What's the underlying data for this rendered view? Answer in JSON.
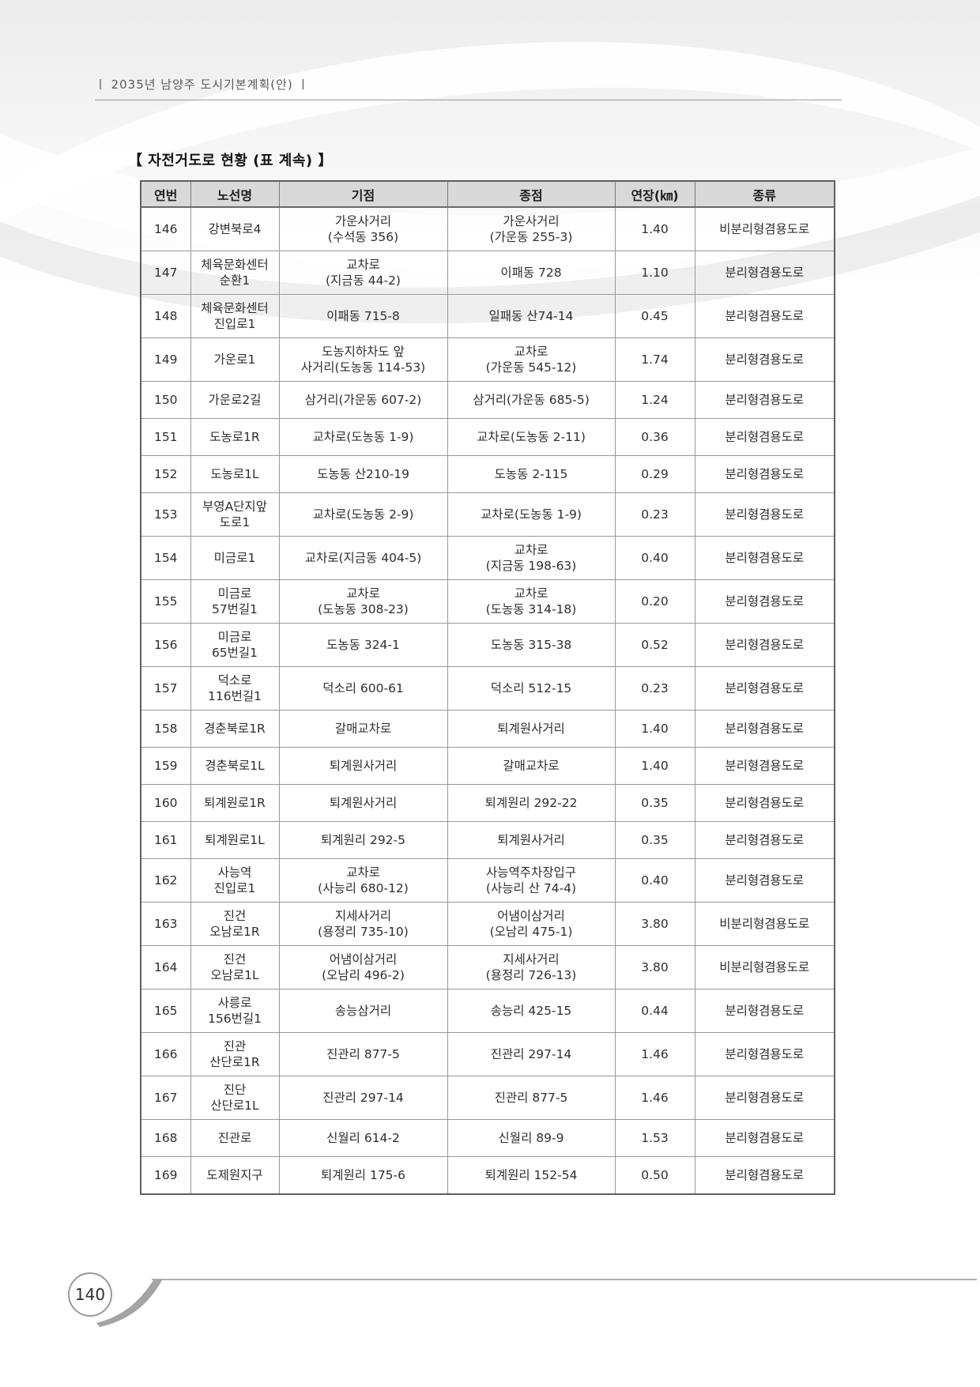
{
  "page": {
    "running_head": "ㅣ  2035년 남양주 도시기본계획(안)  ㅣ",
    "page_number": "140"
  },
  "table": {
    "title": "【 자전거도로 현황 (표 계속) 】",
    "column_keys": [
      "no",
      "name",
      "start",
      "end",
      "length",
      "type"
    ],
    "columns": [
      "연번",
      "노선명",
      "기점",
      "종점",
      "연장(㎞)",
      "종류"
    ],
    "rows": [
      {
        "no": "146",
        "name": "강변북로4",
        "start": "가운사거리\n(수석동 356)",
        "end": "가운사거리\n(가운동 255-3)",
        "length": "1.40",
        "type": "비분리형겸용도로"
      },
      {
        "no": "147",
        "name": "체육문화센터\n순환1",
        "start": "교차로\n(지금동 44-2)",
        "end": "이패동 728",
        "length": "1.10",
        "type": "분리형겸용도로"
      },
      {
        "no": "148",
        "name": "체육문화센터\n진입로1",
        "start": "이패동 715-8",
        "end": "일패동 산74-14",
        "length": "0.45",
        "type": "분리형겸용도로"
      },
      {
        "no": "149",
        "name": "가운로1",
        "start": "도농지하차도 앞\n사거리(도농동 114-53)",
        "end": "교차로\n(가운동 545-12)",
        "length": "1.74",
        "type": "분리형겸용도로"
      },
      {
        "no": "150",
        "name": "가운로2길",
        "start": "삼거리(가운동 607-2)",
        "end": "삼거리(가운동 685-5)",
        "length": "1.24",
        "type": "분리형겸용도로"
      },
      {
        "no": "151",
        "name": "도농로1R",
        "start": "교차로(도농동 1-9)",
        "end": "교차로(도농동 2-11)",
        "length": "0.36",
        "type": "분리형겸용도로"
      },
      {
        "no": "152",
        "name": "도농로1L",
        "start": "도농동 산210-19",
        "end": "도농동 2-115",
        "length": "0.29",
        "type": "분리형겸용도로"
      },
      {
        "no": "153",
        "name": "부영A단지앞\n도로1",
        "start": "교차로(도농동 2-9)",
        "end": "교차로(도농동 1-9)",
        "length": "0.23",
        "type": "분리형겸용도로"
      },
      {
        "no": "154",
        "name": "미금로1",
        "start": "교차로(지금동 404-5)",
        "end": "교차로\n(지금동 198-63)",
        "length": "0.40",
        "type": "분리형겸용도로"
      },
      {
        "no": "155",
        "name": "미금로\n57번길1",
        "start": "교차로\n(도농동 308-23)",
        "end": "교차로\n(도농동 314-18)",
        "length": "0.20",
        "type": "분리형겸용도로"
      },
      {
        "no": "156",
        "name": "미금로\n65번길1",
        "start": "도농동 324-1",
        "end": "도농동 315-38",
        "length": "0.52",
        "type": "분리형겸용도로"
      },
      {
        "no": "157",
        "name": "덕소로\n116번길1",
        "start": "덕소리 600-61",
        "end": "덕소리 512-15",
        "length": "0.23",
        "type": "분리형겸용도로"
      },
      {
        "no": "158",
        "name": "경춘북로1R",
        "start": "갈매교차로",
        "end": "퇴계원사거리",
        "length": "1.40",
        "type": "분리형겸용도로"
      },
      {
        "no": "159",
        "name": "경춘북로1L",
        "start": "퇴계원사거리",
        "end": "갈매교차로",
        "length": "1.40",
        "type": "분리형겸용도로"
      },
      {
        "no": "160",
        "name": "퇴계원로1R",
        "start": "퇴계원사거리",
        "end": "퇴계원리 292-22",
        "length": "0.35",
        "type": "분리형겸용도로"
      },
      {
        "no": "161",
        "name": "퇴계원로1L",
        "start": "퇴계원리 292-5",
        "end": "퇴계원사거리",
        "length": "0.35",
        "type": "분리형겸용도로"
      },
      {
        "no": "162",
        "name": "사능역\n진입로1",
        "start": "교차로\n(사능리 680-12)",
        "end": "사능역주차장입구\n(사능리 산 74-4)",
        "length": "0.40",
        "type": "분리형겸용도로"
      },
      {
        "no": "163",
        "name": "진건\n오남로1R",
        "start": "지세사거리\n(용정리 735-10)",
        "end": "어냄이삼거리\n(오남리 475-1)",
        "length": "3.80",
        "type": "비분리형겸용도로"
      },
      {
        "no": "164",
        "name": "진건\n오남로1L",
        "start": "어냄이삼거리\n(오남리 496-2)",
        "end": "지세사거리\n(용정리 726-13)",
        "length": "3.80",
        "type": "비분리형겸용도로"
      },
      {
        "no": "165",
        "name": "사릉로\n156번길1",
        "start": "송능삼거리",
        "end": "송능리 425-15",
        "length": "0.44",
        "type": "분리형겸용도로"
      },
      {
        "no": "166",
        "name": "진관\n산단로1R",
        "start": "진관리 877-5",
        "end": "진관리 297-14",
        "length": "1.46",
        "type": "분리형겸용도로"
      },
      {
        "no": "167",
        "name": "진단\n산단로1L",
        "start": "진관리 297-14",
        "end": "진관리 877-5",
        "length": "1.46",
        "type": "분리형겸용도로"
      },
      {
        "no": "168",
        "name": "진관로",
        "start": "신월리 614-2",
        "end": "신월리 89-9",
        "length": "1.53",
        "type": "분리형겸용도로"
      },
      {
        "no": "169",
        "name": "도제원지구",
        "start": "퇴계원리 175-6",
        "end": "퇴계원리 152-54",
        "length": "0.50",
        "type": "분리형겸용도로"
      }
    ]
  },
  "colors": {
    "header_bg": "#d9d9d9",
    "table_border": "#5f5f5f",
    "grid_line": "#989898",
    "text": "#2e2e2e"
  }
}
